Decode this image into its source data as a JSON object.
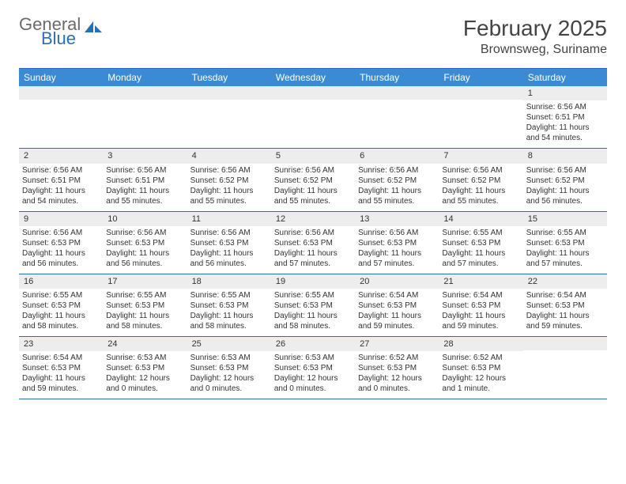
{
  "logo": {
    "text1": "General",
    "text2": "Blue"
  },
  "title": "February 2025",
  "location": "Brownsweg, Suriname",
  "colors": {
    "header_bg": "#3b8bd4",
    "header_text": "#ffffff",
    "border": "#2a6fb5",
    "daynum_bg": "#ededed",
    "text": "#333333",
    "logo_gray": "#6b6b6b",
    "logo_blue": "#2a6fb5"
  },
  "layout": {
    "columns": 7,
    "cell_fontsize": 10,
    "header_fontsize": 12,
    "title_fontsize": 28,
    "location_fontsize": 16
  },
  "day_names": [
    "Sunday",
    "Monday",
    "Tuesday",
    "Wednesday",
    "Thursday",
    "Friday",
    "Saturday"
  ],
  "weeks": [
    [
      null,
      null,
      null,
      null,
      null,
      null,
      {
        "n": "1",
        "sr": "Sunrise: 6:56 AM",
        "ss": "Sunset: 6:51 PM",
        "dl": "Daylight: 11 hours and 54 minutes."
      }
    ],
    [
      {
        "n": "2",
        "sr": "Sunrise: 6:56 AM",
        "ss": "Sunset: 6:51 PM",
        "dl": "Daylight: 11 hours and 54 minutes."
      },
      {
        "n": "3",
        "sr": "Sunrise: 6:56 AM",
        "ss": "Sunset: 6:51 PM",
        "dl": "Daylight: 11 hours and 55 minutes."
      },
      {
        "n": "4",
        "sr": "Sunrise: 6:56 AM",
        "ss": "Sunset: 6:52 PM",
        "dl": "Daylight: 11 hours and 55 minutes."
      },
      {
        "n": "5",
        "sr": "Sunrise: 6:56 AM",
        "ss": "Sunset: 6:52 PM",
        "dl": "Daylight: 11 hours and 55 minutes."
      },
      {
        "n": "6",
        "sr": "Sunrise: 6:56 AM",
        "ss": "Sunset: 6:52 PM",
        "dl": "Daylight: 11 hours and 55 minutes."
      },
      {
        "n": "7",
        "sr": "Sunrise: 6:56 AM",
        "ss": "Sunset: 6:52 PM",
        "dl": "Daylight: 11 hours and 55 minutes."
      },
      {
        "n": "8",
        "sr": "Sunrise: 6:56 AM",
        "ss": "Sunset: 6:52 PM",
        "dl": "Daylight: 11 hours and 56 minutes."
      }
    ],
    [
      {
        "n": "9",
        "sr": "Sunrise: 6:56 AM",
        "ss": "Sunset: 6:53 PM",
        "dl": "Daylight: 11 hours and 56 minutes."
      },
      {
        "n": "10",
        "sr": "Sunrise: 6:56 AM",
        "ss": "Sunset: 6:53 PM",
        "dl": "Daylight: 11 hours and 56 minutes."
      },
      {
        "n": "11",
        "sr": "Sunrise: 6:56 AM",
        "ss": "Sunset: 6:53 PM",
        "dl": "Daylight: 11 hours and 56 minutes."
      },
      {
        "n": "12",
        "sr": "Sunrise: 6:56 AM",
        "ss": "Sunset: 6:53 PM",
        "dl": "Daylight: 11 hours and 57 minutes."
      },
      {
        "n": "13",
        "sr": "Sunrise: 6:56 AM",
        "ss": "Sunset: 6:53 PM",
        "dl": "Daylight: 11 hours and 57 minutes."
      },
      {
        "n": "14",
        "sr": "Sunrise: 6:55 AM",
        "ss": "Sunset: 6:53 PM",
        "dl": "Daylight: 11 hours and 57 minutes."
      },
      {
        "n": "15",
        "sr": "Sunrise: 6:55 AM",
        "ss": "Sunset: 6:53 PM",
        "dl": "Daylight: 11 hours and 57 minutes."
      }
    ],
    [
      {
        "n": "16",
        "sr": "Sunrise: 6:55 AM",
        "ss": "Sunset: 6:53 PM",
        "dl": "Daylight: 11 hours and 58 minutes."
      },
      {
        "n": "17",
        "sr": "Sunrise: 6:55 AM",
        "ss": "Sunset: 6:53 PM",
        "dl": "Daylight: 11 hours and 58 minutes."
      },
      {
        "n": "18",
        "sr": "Sunrise: 6:55 AM",
        "ss": "Sunset: 6:53 PM",
        "dl": "Daylight: 11 hours and 58 minutes."
      },
      {
        "n": "19",
        "sr": "Sunrise: 6:55 AM",
        "ss": "Sunset: 6:53 PM",
        "dl": "Daylight: 11 hours and 58 minutes."
      },
      {
        "n": "20",
        "sr": "Sunrise: 6:54 AM",
        "ss": "Sunset: 6:53 PM",
        "dl": "Daylight: 11 hours and 59 minutes."
      },
      {
        "n": "21",
        "sr": "Sunrise: 6:54 AM",
        "ss": "Sunset: 6:53 PM",
        "dl": "Daylight: 11 hours and 59 minutes."
      },
      {
        "n": "22",
        "sr": "Sunrise: 6:54 AM",
        "ss": "Sunset: 6:53 PM",
        "dl": "Daylight: 11 hours and 59 minutes."
      }
    ],
    [
      {
        "n": "23",
        "sr": "Sunrise: 6:54 AM",
        "ss": "Sunset: 6:53 PM",
        "dl": "Daylight: 11 hours and 59 minutes."
      },
      {
        "n": "24",
        "sr": "Sunrise: 6:53 AM",
        "ss": "Sunset: 6:53 PM",
        "dl": "Daylight: 12 hours and 0 minutes."
      },
      {
        "n": "25",
        "sr": "Sunrise: 6:53 AM",
        "ss": "Sunset: 6:53 PM",
        "dl": "Daylight: 12 hours and 0 minutes."
      },
      {
        "n": "26",
        "sr": "Sunrise: 6:53 AM",
        "ss": "Sunset: 6:53 PM",
        "dl": "Daylight: 12 hours and 0 minutes."
      },
      {
        "n": "27",
        "sr": "Sunrise: 6:52 AM",
        "ss": "Sunset: 6:53 PM",
        "dl": "Daylight: 12 hours and 0 minutes."
      },
      {
        "n": "28",
        "sr": "Sunrise: 6:52 AM",
        "ss": "Sunset: 6:53 PM",
        "dl": "Daylight: 12 hours and 1 minute."
      },
      null
    ]
  ]
}
